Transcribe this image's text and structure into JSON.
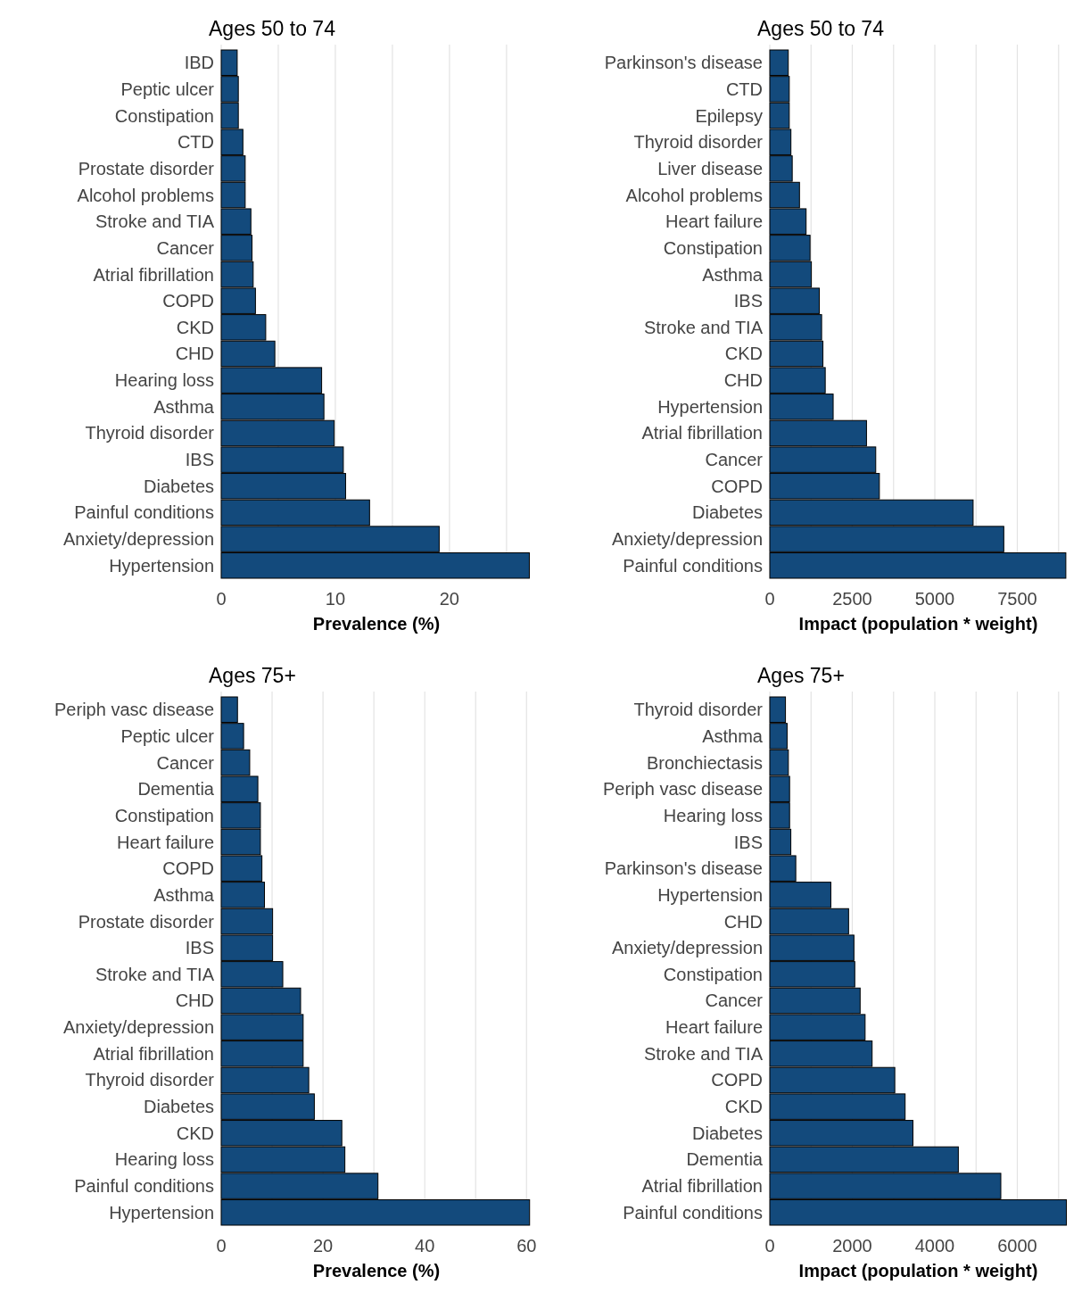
{
  "chart_data": [
    {
      "type": "bar",
      "orientation": "horizontal",
      "title": "Ages 50 to 74",
      "xlabel": "Prevalence (%)",
      "color": "#134a7c",
      "grid": "x",
      "xlim": [
        0,
        27.2
      ],
      "xticks": [
        0,
        {
          "value": 5,
          "label": null
        },
        10,
        {
          "value": 15,
          "label": null
        },
        20,
        {
          "value": 25,
          "label": null
        }
      ],
      "categories": [
        "IBD",
        "Peptic ulcer",
        "Constipation",
        "CTD",
        "Prostate disorder",
        "Alcohol problems",
        "Stroke and TIA",
        "Cancer",
        "Atrial fibrillation",
        "COPD",
        "CKD",
        "CHD",
        "Hearing loss",
        "Asthma",
        "Thyroid disorder",
        "IBS",
        "Diabetes",
        "Painful conditions",
        "Anxiety/depression",
        "Hypertension"
      ],
      "values": [
        1.4,
        1.5,
        1.5,
        1.9,
        2.1,
        2.1,
        2.6,
        2.7,
        2.8,
        3.0,
        3.9,
        4.7,
        8.8,
        9.0,
        9.9,
        10.7,
        10.9,
        13.0,
        19.1,
        27.0
      ]
    },
    {
      "type": "bar",
      "orientation": "horizontal",
      "title": "Ages 50 to 74",
      "xlabel": "Impact (population * weight)",
      "color": "#134a7c",
      "grid": "x",
      "xlim": [
        0,
        9000
      ],
      "xticks": [
        0,
        {
          "value": 1250,
          "label": null
        },
        2500,
        {
          "value": 3750,
          "label": null
        },
        5000,
        {
          "value": 6250,
          "label": null
        },
        7500,
        {
          "value": 8750,
          "label": null
        }
      ],
      "categories": [
        "Parkinson's disease",
        "CTD",
        "Epilepsy",
        "Thyroid disorder",
        "Liver disease",
        "Alcohol problems",
        "Heart failure",
        "Constipation",
        "Asthma",
        "IBS",
        "Stroke and TIA",
        "CKD",
        "CHD",
        "Hypertension",
        "Atrial fibrillation",
        "Cancer",
        "COPD",
        "Diabetes",
        "Anxiety/depression",
        "Painful conditions"
      ],
      "values": [
        560,
        590,
        590,
        640,
        680,
        900,
        1100,
        1220,
        1260,
        1500,
        1570,
        1610,
        1680,
        1920,
        2930,
        3210,
        3320,
        6160,
        7090,
        8970
      ]
    },
    {
      "type": "bar",
      "orientation": "horizontal",
      "title": "Ages 75+",
      "xlabel": "Prevalence (%)",
      "color": "#134a7c",
      "grid": "x",
      "xlim": [
        0,
        61
      ],
      "xticks": [
        0,
        {
          "value": 10,
          "label": null
        },
        20,
        {
          "value": 30,
          "label": null
        },
        40,
        {
          "value": 50,
          "label": null
        },
        60
      ],
      "categories": [
        "Periph vasc disease",
        "Peptic ulcer",
        "Cancer",
        "Dementia",
        "Constipation",
        "Heart failure",
        "COPD",
        "Asthma",
        "Prostate disorder",
        "IBS",
        "Stroke and TIA",
        "CHD",
        "Anxiety/depression",
        "Atrial fibrillation",
        "Thyroid disorder",
        "Diabetes",
        "CKD",
        "Hearing loss",
        "Painful conditions",
        "Hypertension"
      ],
      "values": [
        3.2,
        4.4,
        5.6,
        7.2,
        7.7,
        7.7,
        8.0,
        8.5,
        10.1,
        10.1,
        12.1,
        15.6,
        16.1,
        16.1,
        17.2,
        18.3,
        23.7,
        24.3,
        30.8,
        60.6
      ]
    },
    {
      "type": "bar",
      "orientation": "horizontal",
      "title": "Ages 75+",
      "xlabel": "Impact (population * weight)",
      "color": "#134a7c",
      "grid": "x",
      "xlim": [
        0,
        7200
      ],
      "xticks": [
        0,
        {
          "value": 1000,
          "label": null
        },
        2000,
        {
          "value": 3000,
          "label": null
        },
        4000,
        {
          "value": 5000,
          "label": null
        },
        6000,
        {
          "value": 7000,
          "label": null
        }
      ],
      "categories": [
        "Thyroid disorder",
        "Asthma",
        "Bronchiectasis",
        "Periph vasc disease",
        "Hearing loss",
        "IBS",
        "Parkinson's disease",
        "Hypertension",
        "CHD",
        "Anxiety/depression",
        "Constipation",
        "Cancer",
        "Heart failure",
        "Stroke and TIA",
        "COPD",
        "CKD",
        "Diabetes",
        "Dementia",
        "Atrial fibrillation",
        "Painful conditions"
      ],
      "values": [
        380,
        420,
        450,
        480,
        480,
        510,
        630,
        1480,
        1910,
        2040,
        2060,
        2190,
        2310,
        2480,
        3030,
        3280,
        3470,
        4570,
        5600,
        7190
      ]
    }
  ]
}
